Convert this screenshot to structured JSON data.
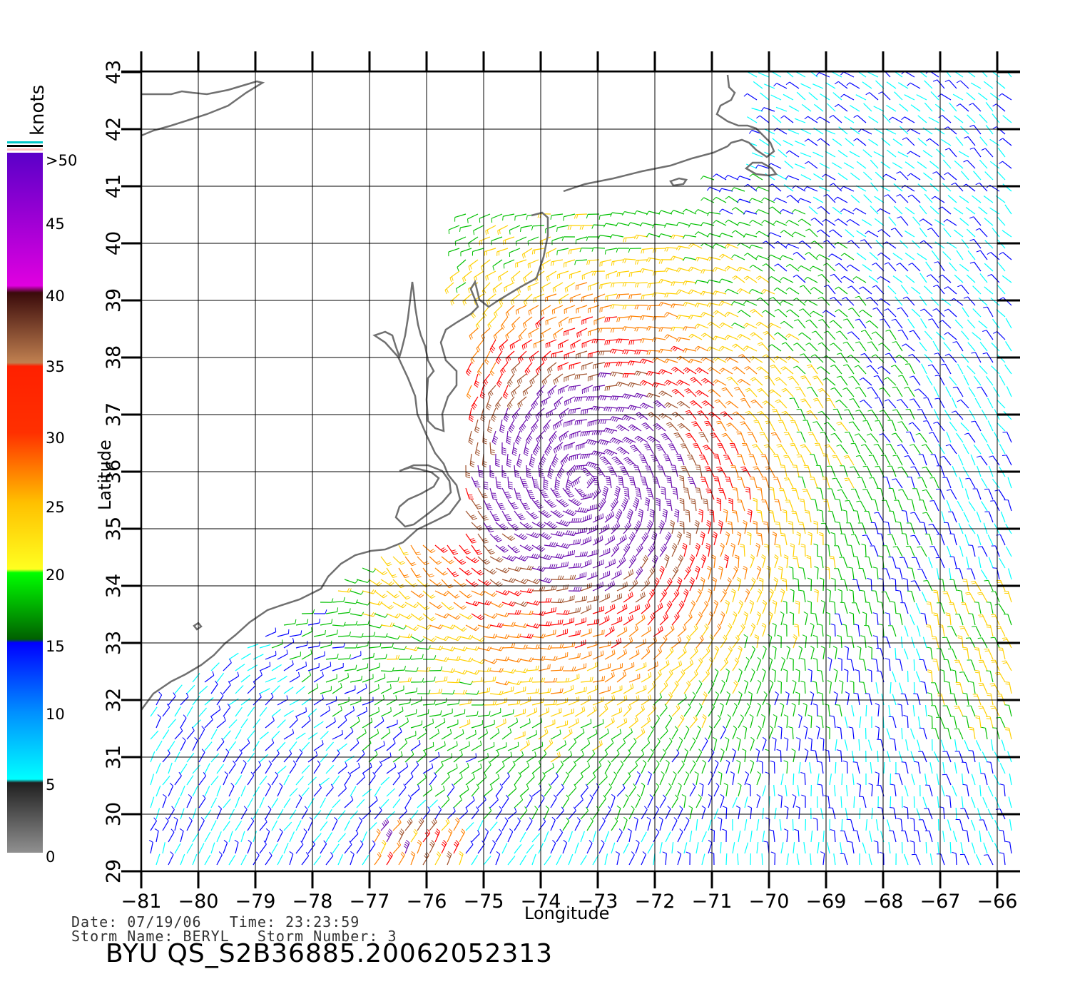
{
  "map": {
    "x_axis_label": "Longitude",
    "y_axis_label": "Latitude",
    "lon_ticks": [
      "−81",
      "−80",
      "−79",
      "−78",
      "−77",
      "−76",
      "−75",
      "−74",
      "−73",
      "−72",
      "−71",
      "−70",
      "−69",
      "−68",
      "−67",
      "−66"
    ],
    "lat_ticks": [
      "29",
      "30",
      "31",
      "32",
      "33",
      "34",
      "35",
      "36",
      "37",
      "38",
      "39",
      "40",
      "41",
      "42",
      "43"
    ],
    "lon_range": [
      -81,
      -65.6
    ],
    "lat_range": [
      29,
      43
    ],
    "storm_center": {
      "lon": -72.5,
      "lat": 36.3
    }
  },
  "colorbar": {
    "unit": "knots",
    "labels": [
      ">50",
      "45",
      "40",
      "35",
      "30",
      "25",
      "20",
      "15",
      "10",
      "5",
      "0"
    ],
    "colors": {
      "gray": "#888888",
      "black": "#222222",
      "cyan": "#00ffff",
      "blue": "#0000ff",
      "green": "#00c000",
      "yellow": "#ffff00",
      "orange": "#ff8000",
      "red": "#ff0000",
      "brown": "#a0522d",
      "magenta": "#ff00ff",
      "purple": "#6a0dad"
    }
  },
  "footer": {
    "date_label": "Date:",
    "date": "07/19/06",
    "time_label": "Time:",
    "time": "23:23:59",
    "storm_name_label": "Storm Name:",
    "storm_name": "BERYL",
    "storm_number_label": "Storm Number:",
    "storm_number": "3",
    "title": "BYU QS_S2B36885.20062052313"
  }
}
